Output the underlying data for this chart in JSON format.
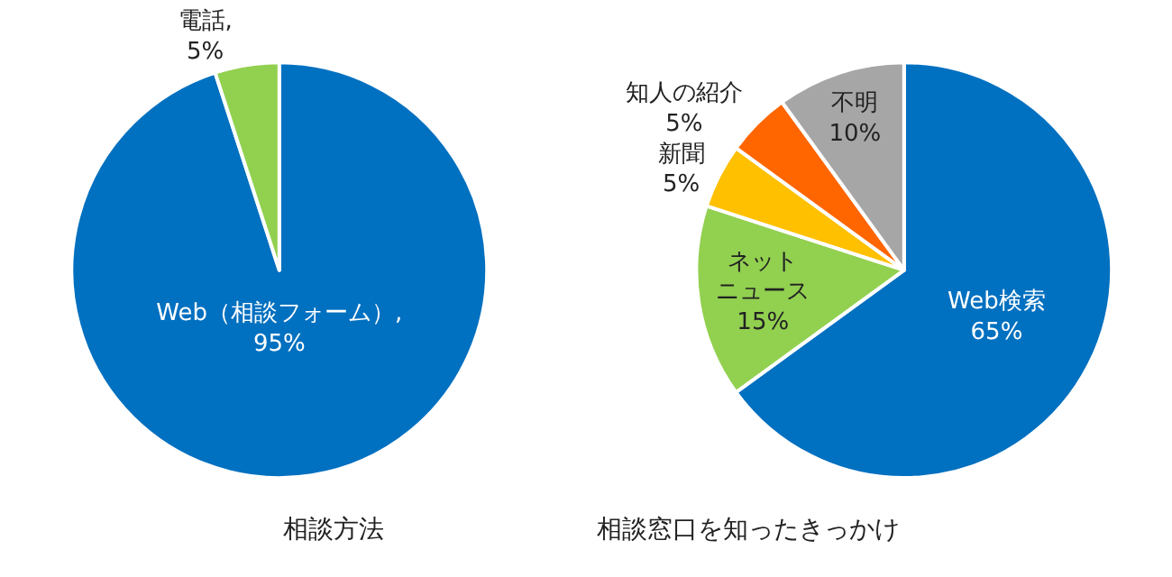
{
  "chart_data": [
    {
      "type": "pie",
      "title": "相談方法",
      "categories": [
        "Web（相談フォーム）",
        "電話"
      ],
      "values": [
        95,
        5
      ],
      "colors": [
        "#0070c0",
        "#92d050"
      ],
      "value_labels": [
        ",\n95%",
        ",\n5%"
      ]
    },
    {
      "type": "pie",
      "title": "相談窓口を知ったきっかけ",
      "categories": [
        "Web検索",
        "ネットニュース",
        "新聞",
        "知人の紹介",
        "不明"
      ],
      "values": [
        65,
        15,
        5,
        5,
        10
      ],
      "colors": [
        "#0070c0",
        "#92d050",
        "#ffc000",
        "#ff6600",
        "#a6a6a6"
      ],
      "value_labels": [
        "65%",
        "15%",
        "5%",
        "5%",
        "10%"
      ]
    }
  ]
}
